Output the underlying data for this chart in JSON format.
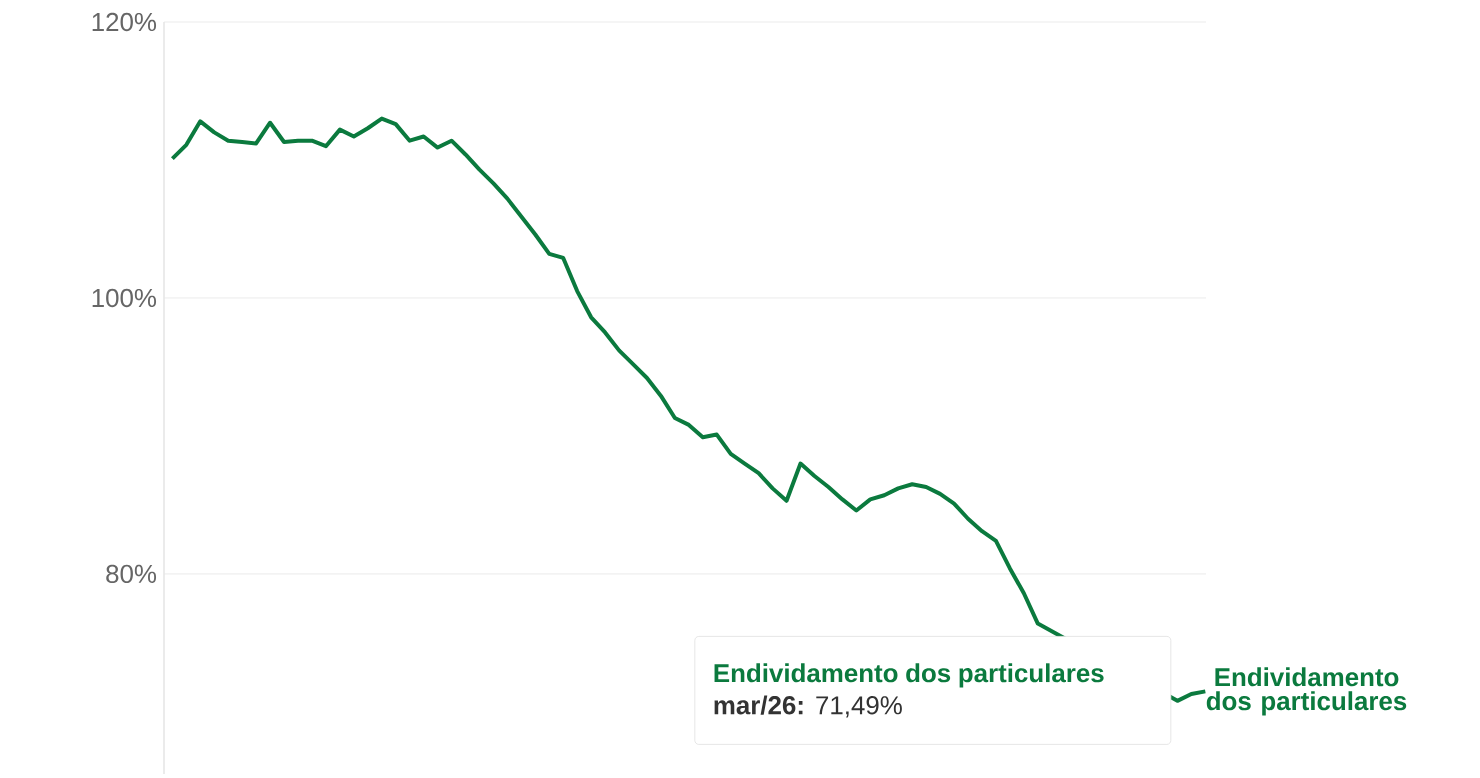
{
  "chart_data": {
    "type": "line",
    "categories": [
      null,
      null,
      null,
      null,
      null,
      null,
      null,
      null,
      null,
      null,
      null,
      null,
      null,
      null,
      null,
      null,
      null,
      null,
      null,
      null,
      null,
      null,
      null,
      null,
      null,
      null,
      null,
      null,
      null,
      null,
      null,
      null,
      null,
      null,
      null,
      null,
      null,
      null,
      null,
      null,
      null,
      null,
      null,
      null,
      null,
      null,
      null,
      null,
      null,
      null,
      null,
      null,
      null,
      null,
      null,
      null,
      null,
      null,
      null,
      null,
      null,
      null,
      null,
      null,
      null,
      null,
      null,
      null,
      null,
      null,
      null,
      null,
      null,
      null,
      null
    ],
    "series": [
      {
        "name": "Endividamento dos particulares",
        "color": "#0b7a3e",
        "values": [
          110.1,
          111.1,
          112.8,
          112.0,
          111.4,
          111.3,
          111.2,
          112.7,
          111.3,
          111.4,
          111.4,
          111.0,
          112.2,
          111.7,
          112.3,
          113.0,
          112.6,
          111.4,
          111.7,
          110.9,
          111.4,
          110.4,
          109.3,
          108.3,
          107.2,
          105.9,
          104.6,
          103.2,
          102.9,
          100.5,
          98.6,
          97.5,
          96.2,
          95.2,
          94.2,
          92.9,
          91.3,
          90.8,
          89.9,
          90.1,
          88.7,
          88.0,
          87.3,
          86.2,
          85.3,
          88.0,
          87.1,
          86.3,
          85.4,
          84.6,
          85.4,
          85.7,
          86.2,
          86.5,
          86.3,
          85.8,
          85.1,
          84.0,
          83.1,
          82.4,
          80.4,
          78.6,
          76.4,
          null,
          null,
          null,
          null,
          null,
          null,
          null,
          null,
          null,
          70.8,
          71.3,
          71.49
        ]
      }
    ],
    "ylim": [
      65.5,
      120
    ],
    "yticks": [
      {
        "value": 80,
        "label": "80%"
      },
      {
        "value": 100,
        "label": "100%"
      },
      {
        "value": 120,
        "label": "120%"
      }
    ],
    "grid": "y",
    "legend": "right",
    "marker": "none",
    "line_style": "solid",
    "annotations": [
      "Endividamento dos particulares",
      "**mar/26:** 71,49%"
    ]
  }
}
